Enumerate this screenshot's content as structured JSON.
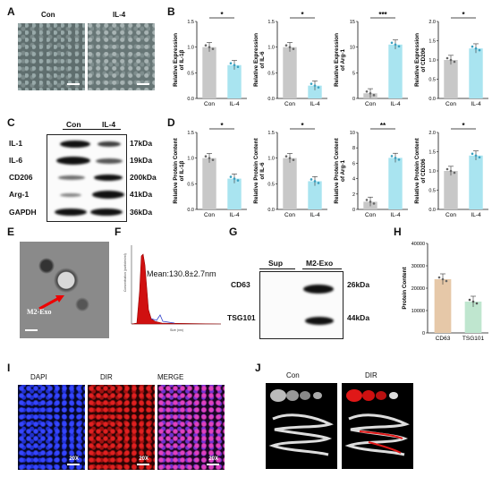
{
  "panels": {
    "A": "A",
    "B": "B",
    "C": "C",
    "D": "D",
    "E": "E",
    "F": "F",
    "G": "G",
    "H": "H",
    "I": "I",
    "J": "J"
  },
  "panelA": {
    "con": "Con",
    "il4": "IL-4"
  },
  "panelC": {
    "con": "Con",
    "il4": "IL-4",
    "rows": [
      {
        "name": "IL-1",
        "kda": "17kDa"
      },
      {
        "name": "IL-6",
        "kda": "19kDa"
      },
      {
        "name": "CD206",
        "kda": "200kDa"
      },
      {
        "name": "Arg-1",
        "kda": "41kDa"
      },
      {
        "name": "GAPDH",
        "kda": "36kDa"
      }
    ]
  },
  "panelE": {
    "label": "M2-Exo"
  },
  "panelF": {
    "mean": "Mean:130.8±2.7nm"
  },
  "panelG": {
    "sup": "Sup",
    "m2exo": "M2-Exo",
    "rows": [
      {
        "name": "CD63",
        "kda": "26kDa"
      },
      {
        "name": "TSG101",
        "kda": "44kDa"
      }
    ]
  },
  "panelI": {
    "dapi": "DAPI",
    "dir": "DIR",
    "merge": "MERGE",
    "mag": "20X"
  },
  "panelJ": {
    "con": "Con",
    "dir": "DIR"
  },
  "colors": {
    "con": "#c8c8c8",
    "il4": "#a9e4f0",
    "cd63": "#e6c8a8",
    "tsg101": "#bfe6cf"
  },
  "chart_data": [
    {
      "type": "bar",
      "panel": "B",
      "ylabel": "Relative Expression of IL-1β",
      "categories": [
        "Con",
        "IL-4"
      ],
      "values": [
        1.0,
        0.65
      ],
      "ylim": [
        0,
        1.5
      ],
      "yticks": [
        "0.0",
        "0.5",
        "1.0",
        "1.5"
      ],
      "sig": "*"
    },
    {
      "type": "bar",
      "panel": "B",
      "ylabel": "Relative Expression of IL-6",
      "categories": [
        "Con",
        "IL-4"
      ],
      "values": [
        1.0,
        0.25
      ],
      "ylim": [
        0,
        1.5
      ],
      "yticks": [
        "0.0",
        "0.5",
        "1.0",
        "1.5"
      ],
      "sig": "*"
    },
    {
      "type": "bar",
      "panel": "B",
      "ylabel": "Relative Expression of Arg-1",
      "categories": [
        "Con",
        "IL-4"
      ],
      "values": [
        1.0,
        10.5
      ],
      "ylim": [
        0,
        15
      ],
      "yticks": [
        "0",
        "5",
        "10",
        "15"
      ],
      "sig": "***"
    },
    {
      "type": "bar",
      "panel": "B",
      "ylabel": "Relative Expression of CD206",
      "categories": [
        "Con",
        "IL-4"
      ],
      "values": [
        1.0,
        1.3
      ],
      "ylim": [
        0,
        2.0
      ],
      "yticks": [
        "0.0",
        "0.5",
        "1.0",
        "1.5",
        "2.0"
      ],
      "sig": "*"
    },
    {
      "type": "bar",
      "panel": "D",
      "ylabel": "Relative Protein Content of IL-1β",
      "categories": [
        "Con",
        "IL-4"
      ],
      "values": [
        1.0,
        0.6
      ],
      "ylim": [
        0,
        1.5
      ],
      "yticks": [
        "0.0",
        "0.5",
        "1.0",
        "1.5"
      ],
      "sig": "*"
    },
    {
      "type": "bar",
      "panel": "D",
      "ylabel": "Relative Protein Content of IL-6",
      "categories": [
        "Con",
        "IL-4"
      ],
      "values": [
        1.0,
        0.55
      ],
      "ylim": [
        0,
        1.5
      ],
      "yticks": [
        "0.0",
        "0.5",
        "1.0",
        "1.5"
      ],
      "sig": "*"
    },
    {
      "type": "bar",
      "panel": "D",
      "ylabel": "Relative Protein Content of Arg-1",
      "categories": [
        "Con",
        "IL-4"
      ],
      "values": [
        1.0,
        6.7
      ],
      "ylim": [
        0,
        10
      ],
      "yticks": [
        "0",
        "2",
        "4",
        "6",
        "8",
        "10"
      ],
      "sig": "**"
    },
    {
      "type": "bar",
      "panel": "D",
      "ylabel": "Relative Protein Content of CD206",
      "categories": [
        "Con",
        "IL-4"
      ],
      "values": [
        1.0,
        1.4
      ],
      "ylim": [
        0,
        2.0
      ],
      "yticks": [
        "0.0",
        "0.5",
        "1.0",
        "1.5",
        "2.0"
      ],
      "sig": "*"
    },
    {
      "type": "bar",
      "panel": "H",
      "ylabel": "Protein Content",
      "categories": [
        "CD63",
        "TSG101"
      ],
      "values": [
        24000,
        14000
      ],
      "ylim": [
        0,
        40000
      ],
      "yticks": [
        "0",
        "10000",
        "20000",
        "30000",
        "40000"
      ]
    }
  ]
}
